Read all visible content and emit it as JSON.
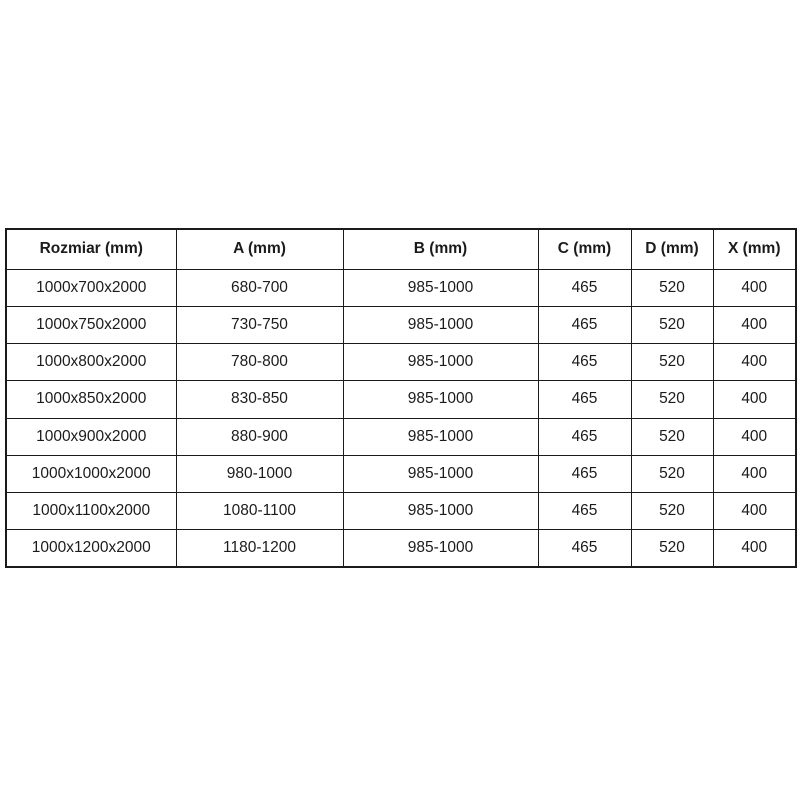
{
  "table": {
    "columns": [
      {
        "label": "Rozmiar (mm)"
      },
      {
        "label": "A (mm)"
      },
      {
        "label": "B (mm)"
      },
      {
        "label": "C (mm)"
      },
      {
        "label": "D (mm)"
      },
      {
        "label": "X (mm)"
      }
    ],
    "rows": [
      [
        "1000x700x2000",
        "680-700",
        "985-1000",
        "465",
        "520",
        "400"
      ],
      [
        "1000x750x2000",
        "730-750",
        "985-1000",
        "465",
        "520",
        "400"
      ],
      [
        "1000x800x2000",
        "780-800",
        "985-1000",
        "465",
        "520",
        "400"
      ],
      [
        "1000x850x2000",
        "830-850",
        "985-1000",
        "465",
        "520",
        "400"
      ],
      [
        "1000x900x2000",
        "880-900",
        "985-1000",
        "465",
        "520",
        "400"
      ],
      [
        "1000x1000x2000",
        "980-1000",
        "985-1000",
        "465",
        "520",
        "400"
      ],
      [
        "1000x1100x2000",
        "1080-1100",
        "985-1000",
        "465",
        "520",
        "400"
      ],
      [
        "1000x1200x2000",
        "1180-1200",
        "985-1000",
        "465",
        "520",
        "400"
      ]
    ],
    "colors": {
      "border": "#1b1b1b",
      "text": "#1b1b1b",
      "background": "#ffffff"
    }
  }
}
